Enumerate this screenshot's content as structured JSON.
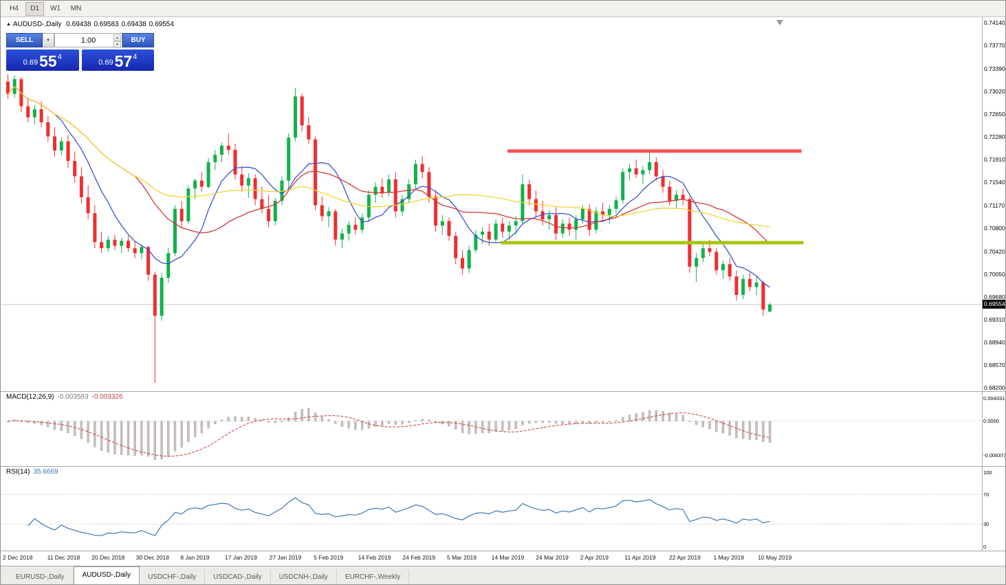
{
  "toolbar": {
    "buttons": [
      {
        "label": "H4"
      },
      {
        "label": "D1"
      },
      {
        "label": "W1"
      },
      {
        "label": "MN"
      }
    ]
  },
  "chart_header": {
    "symbol": "AUDUSD-,Daily",
    "open": "0.69438",
    "high": "0.69583",
    "low": "0.69438",
    "close": "0.69554"
  },
  "trade_panel": {
    "sell_label": "SELL",
    "buy_label": "BUY",
    "volume": "1.00",
    "sell_price": {
      "prefix": "0.69",
      "big": "55",
      "sup": "4"
    },
    "buy_price": {
      "prefix": "0.69",
      "big": "57",
      "sup": "4"
    }
  },
  "icons": {
    "collapse": "▲",
    "dropdown": "▼",
    "spin_up": "▲",
    "spin_down": "▼"
  },
  "price_axis": {
    "current": "0.69554"
  },
  "indicators": {
    "macd": {
      "label": "MACD(12,26,9)",
      "value1": "-0.003583",
      "value2": "-0.003326",
      "axis_labels": [
        "0.004331",
        "0.0000",
        "-0.006373"
      ]
    },
    "rsi": {
      "label": "RSI(14)",
      "value": "35.6669",
      "axis_labels": [
        "100",
        "70",
        "30",
        "0"
      ]
    }
  },
  "tabs": {
    "items": [
      {
        "label": "EURUSD-,Daily",
        "active": false
      },
      {
        "label": "AUDUSD-,Daily",
        "active": true
      },
      {
        "label": "USDCHF-,Daily",
        "active": false
      },
      {
        "label": "USDCAD-,Daily",
        "active": false
      },
      {
        "label": "USDCNH-,Daily",
        "active": false
      },
      {
        "label": "EURCHF-,Weekly",
        "active": false
      }
    ]
  },
  "chart_data": {
    "type": "candlestick",
    "symbol": "AUDUSD-",
    "timeframe": "Daily",
    "title": "AUDUSD-,Daily",
    "grid": false,
    "y_range": [
      0.682,
      0.7414
    ],
    "last_price": 0.69554,
    "y_tick_labels": [
      "0.74140",
      "0.73770",
      "0.73390",
      "0.73020",
      "0.72650",
      "0.72280",
      "0.71910",
      "0.71540",
      "0.71170",
      "0.70800",
      "0.70420",
      "0.70050",
      "0.69680",
      "0.69310",
      "0.68940",
      "0.68570",
      "0.68200"
    ],
    "x_tick_labels": [
      "2 Dec 2018",
      "11 Dec 2018",
      "20 Dec 2018",
      "30 Dec 2018",
      "8 Jan 2019",
      "17 Jan 2019",
      "27 Jan 2019",
      "5 Feb 2019",
      "14 Feb 2019",
      "24 Feb 2019",
      "5 Mar 2019",
      "14 Mar 2019",
      "24 Mar 2019",
      "2 Apr 2019",
      "11 Apr 2019",
      "22 Apr 2019",
      "1 May 2019",
      "10 May 2019"
    ],
    "colors": {
      "bull": "#12b14c",
      "bear": "#ef2e2e"
    },
    "candles": [
      [
        0.7318,
        0.733,
        0.729,
        0.7298
      ],
      [
        0.7298,
        0.7328,
        0.7292,
        0.7322
      ],
      [
        0.7322,
        0.7326,
        0.7268,
        0.7278
      ],
      [
        0.7278,
        0.7292,
        0.7252,
        0.726
      ],
      [
        0.726,
        0.728,
        0.7248,
        0.7273
      ],
      [
        0.7273,
        0.7286,
        0.7244,
        0.7252
      ],
      [
        0.7252,
        0.7262,
        0.722,
        0.7229
      ],
      [
        0.7229,
        0.7244,
        0.7196,
        0.7206
      ],
      [
        0.7206,
        0.7228,
        0.7198,
        0.7221
      ],
      [
        0.7221,
        0.7232,
        0.7178,
        0.7189
      ],
      [
        0.7189,
        0.7204,
        0.7154,
        0.7164
      ],
      [
        0.7164,
        0.7179,
        0.712,
        0.713
      ],
      [
        0.713,
        0.7149,
        0.7094,
        0.7104
      ],
      [
        0.7104,
        0.7117,
        0.7047,
        0.7057
      ],
      [
        0.7057,
        0.7074,
        0.7039,
        0.7047
      ],
      [
        0.7047,
        0.7067,
        0.7041,
        0.7061
      ],
      [
        0.7061,
        0.7069,
        0.7044,
        0.7051
      ],
      [
        0.7051,
        0.7064,
        0.7039,
        0.7059
      ],
      [
        0.7059,
        0.7067,
        0.7041,
        0.7047
      ],
      [
        0.7047,
        0.7057,
        0.7031,
        0.7039
      ],
      [
        0.7039,
        0.7054,
        0.7029,
        0.7049
      ],
      [
        0.7049,
        0.7051,
        0.6994,
        0.7004
      ],
      [
        0.7004,
        0.7009,
        0.6828,
        0.6937
      ],
      [
        0.6937,
        0.7007,
        0.6929,
        0.6999
      ],
      [
        0.6999,
        0.7047,
        0.6991,
        0.7039
      ],
      [
        0.7039,
        0.7117,
        0.7034,
        0.7111
      ],
      [
        0.7111,
        0.7124,
        0.7081,
        0.7091
      ],
      [
        0.7091,
        0.7149,
        0.7087,
        0.7144
      ],
      [
        0.7144,
        0.7161,
        0.7127,
        0.7157
      ],
      [
        0.7157,
        0.7171,
        0.7139,
        0.7147
      ],
      [
        0.7147,
        0.7194,
        0.7144,
        0.7187
      ],
      [
        0.7187,
        0.7207,
        0.7174,
        0.7199
      ],
      [
        0.7199,
        0.7219,
        0.7187,
        0.7214
      ],
      [
        0.7214,
        0.7234,
        0.7199,
        0.7207
      ],
      [
        0.7207,
        0.7217,
        0.7159,
        0.7167
      ],
      [
        0.7167,
        0.7181,
        0.7139,
        0.7149
      ],
      [
        0.7149,
        0.7169,
        0.7129,
        0.7161
      ],
      [
        0.7161,
        0.7167,
        0.7117,
        0.7127
      ],
      [
        0.7127,
        0.7147,
        0.7104,
        0.7111
      ],
      [
        0.7111,
        0.7134,
        0.7081,
        0.7091
      ],
      [
        0.7091,
        0.7129,
        0.7084,
        0.7124
      ],
      [
        0.7124,
        0.7164,
        0.7117,
        0.7157
      ],
      [
        0.7157,
        0.7234,
        0.7141,
        0.7227
      ],
      [
        0.7227,
        0.7308,
        0.7221,
        0.7294
      ],
      [
        0.7294,
        0.7299,
        0.7237,
        0.7247
      ],
      [
        0.7247,
        0.7261,
        0.7217,
        0.7224
      ],
      [
        0.7224,
        0.7229,
        0.7109,
        0.7117
      ],
      [
        0.7117,
        0.7131,
        0.7091,
        0.7099
      ],
      [
        0.7099,
        0.7114,
        0.7081,
        0.7107
      ],
      [
        0.7107,
        0.7111,
        0.7051,
        0.7061
      ],
      [
        0.7061,
        0.7079,
        0.7047,
        0.7071
      ],
      [
        0.7071,
        0.7091,
        0.7059,
        0.7085
      ],
      [
        0.7085,
        0.7097,
        0.7069,
        0.7077
      ],
      [
        0.7077,
        0.7104,
        0.7071,
        0.7097
      ],
      [
        0.7097,
        0.7141,
        0.7091,
        0.7134
      ],
      [
        0.7134,
        0.7154,
        0.7121,
        0.7147
      ],
      [
        0.7147,
        0.7161,
        0.7129,
        0.7137
      ],
      [
        0.7137,
        0.7167,
        0.7131,
        0.7159
      ],
      [
        0.7159,
        0.7171,
        0.7097,
        0.7107
      ],
      [
        0.7107,
        0.7134,
        0.7099,
        0.7127
      ],
      [
        0.7127,
        0.7159,
        0.7121,
        0.7151
      ],
      [
        0.7151,
        0.7191,
        0.7144,
        0.7184
      ],
      [
        0.7184,
        0.7197,
        0.7161,
        0.7171
      ],
      [
        0.7171,
        0.7179,
        0.7121,
        0.7131
      ],
      [
        0.7131,
        0.7141,
        0.7074,
        0.7084
      ],
      [
        0.7084,
        0.7101,
        0.7069,
        0.7091
      ],
      [
        0.7091,
        0.7097,
        0.7059,
        0.7067
      ],
      [
        0.7067,
        0.7074,
        0.7021,
        0.7031
      ],
      [
        0.7031,
        0.7044,
        0.7004,
        0.7014
      ],
      [
        0.7014,
        0.7051,
        0.7007,
        0.7044
      ],
      [
        0.7044,
        0.7077,
        0.7039,
        0.7069
      ],
      [
        0.7069,
        0.7081,
        0.7054,
        0.7074
      ],
      [
        0.7074,
        0.7087,
        0.7051,
        0.7061
      ],
      [
        0.7061,
        0.7094,
        0.7057,
        0.7087
      ],
      [
        0.7087,
        0.7097,
        0.7064,
        0.7074
      ],
      [
        0.7074,
        0.7091,
        0.7061,
        0.7084
      ],
      [
        0.7084,
        0.7099,
        0.7069,
        0.7091
      ],
      [
        0.7091,
        0.7167,
        0.7087,
        0.7151
      ],
      [
        0.7151,
        0.7159,
        0.7117,
        0.7127
      ],
      [
        0.7127,
        0.7141,
        0.7097,
        0.7107
      ],
      [
        0.7107,
        0.7124,
        0.7084,
        0.7094
      ],
      [
        0.7094,
        0.7109,
        0.7077,
        0.7101
      ],
      [
        0.7101,
        0.7114,
        0.7061,
        0.7071
      ],
      [
        0.7071,
        0.7094,
        0.7064,
        0.7087
      ],
      [
        0.7087,
        0.7097,
        0.7067,
        0.7077
      ],
      [
        0.7077,
        0.7101,
        0.7061,
        0.7094
      ],
      [
        0.7094,
        0.7117,
        0.7087,
        0.7111
      ],
      [
        0.7111,
        0.7119,
        0.7067,
        0.7077
      ],
      [
        0.7077,
        0.7114,
        0.7071,
        0.7107
      ],
      [
        0.7107,
        0.7121,
        0.7094,
        0.7101
      ],
      [
        0.7101,
        0.7117,
        0.7087,
        0.7111
      ],
      [
        0.7111,
        0.7131,
        0.7104,
        0.7125
      ],
      [
        0.7125,
        0.7177,
        0.7119,
        0.7171
      ],
      [
        0.7171,
        0.7184,
        0.7157,
        0.7177
      ],
      [
        0.7177,
        0.7191,
        0.7161,
        0.7167
      ],
      [
        0.7167,
        0.7181,
        0.7151,
        0.7174
      ],
      [
        0.7174,
        0.7204,
        0.7167,
        0.7187
      ],
      [
        0.7187,
        0.7195,
        0.7157,
        0.7164
      ],
      [
        0.7164,
        0.7174,
        0.7137,
        0.7147
      ],
      [
        0.7147,
        0.7157,
        0.7117,
        0.7124
      ],
      [
        0.7124,
        0.7141,
        0.7111,
        0.7134
      ],
      [
        0.7134,
        0.7144,
        0.7117,
        0.7127
      ],
      [
        0.7127,
        0.7131,
        0.7007,
        0.7017
      ],
      [
        0.7017,
        0.7039,
        0.6992,
        0.7031
      ],
      [
        0.7031,
        0.7057,
        0.7024,
        0.7047
      ],
      [
        0.7047,
        0.7061,
        0.7034,
        0.7041
      ],
      [
        0.7041,
        0.7047,
        0.7004,
        0.7011
      ],
      [
        0.7011,
        0.7027,
        0.6997,
        0.7021
      ],
      [
        0.7021,
        0.7031,
        0.6994,
        0.7001
      ],
      [
        0.7001,
        0.7011,
        0.6962,
        0.6971
      ],
      [
        0.6971,
        0.7004,
        0.6964,
        0.6997
      ],
      [
        0.6997,
        0.7007,
        0.6977,
        0.6984
      ],
      [
        0.6984,
        0.7001,
        0.6971,
        0.6991
      ],
      [
        0.6991,
        0.6994,
        0.6937,
        0.6947
      ],
      [
        0.69438,
        0.69583,
        0.69438,
        0.69554
      ]
    ],
    "moving_averages": [
      {
        "name": "ma-fast",
        "period": 8,
        "color": "#3a50c8"
      },
      {
        "name": "ma-medium",
        "period": 20,
        "color": "#d23434"
      },
      {
        "name": "ma-slow",
        "period": 45,
        "color": "#f2d431"
      }
    ],
    "annotations": [
      {
        "type": "hline",
        "name": "resistance-line",
        "price": 0.7205,
        "from_index": 75,
        "to_index": 119,
        "color": "#fa5252",
        "width": 5
      },
      {
        "type": "hline",
        "name": "support-line",
        "price": 0.7056,
        "from_index": 74,
        "to_index": 119.3,
        "color": "#a9c410",
        "width": 5
      }
    ],
    "indicator_panels": [
      {
        "name": "MACD",
        "params": [
          12,
          26,
          9
        ],
        "values": [
          -0.003583,
          -0.003326
        ],
        "axis_max": 0.004331,
        "axis_min": -0.006373,
        "histogram_color": "#c9bfbf",
        "signal_color": "#c23b3b"
      },
      {
        "name": "RSI",
        "params": [
          14
        ],
        "value": 35.6669,
        "levels": [
          70,
          30
        ],
        "color": "#3b77b5"
      }
    ]
  }
}
